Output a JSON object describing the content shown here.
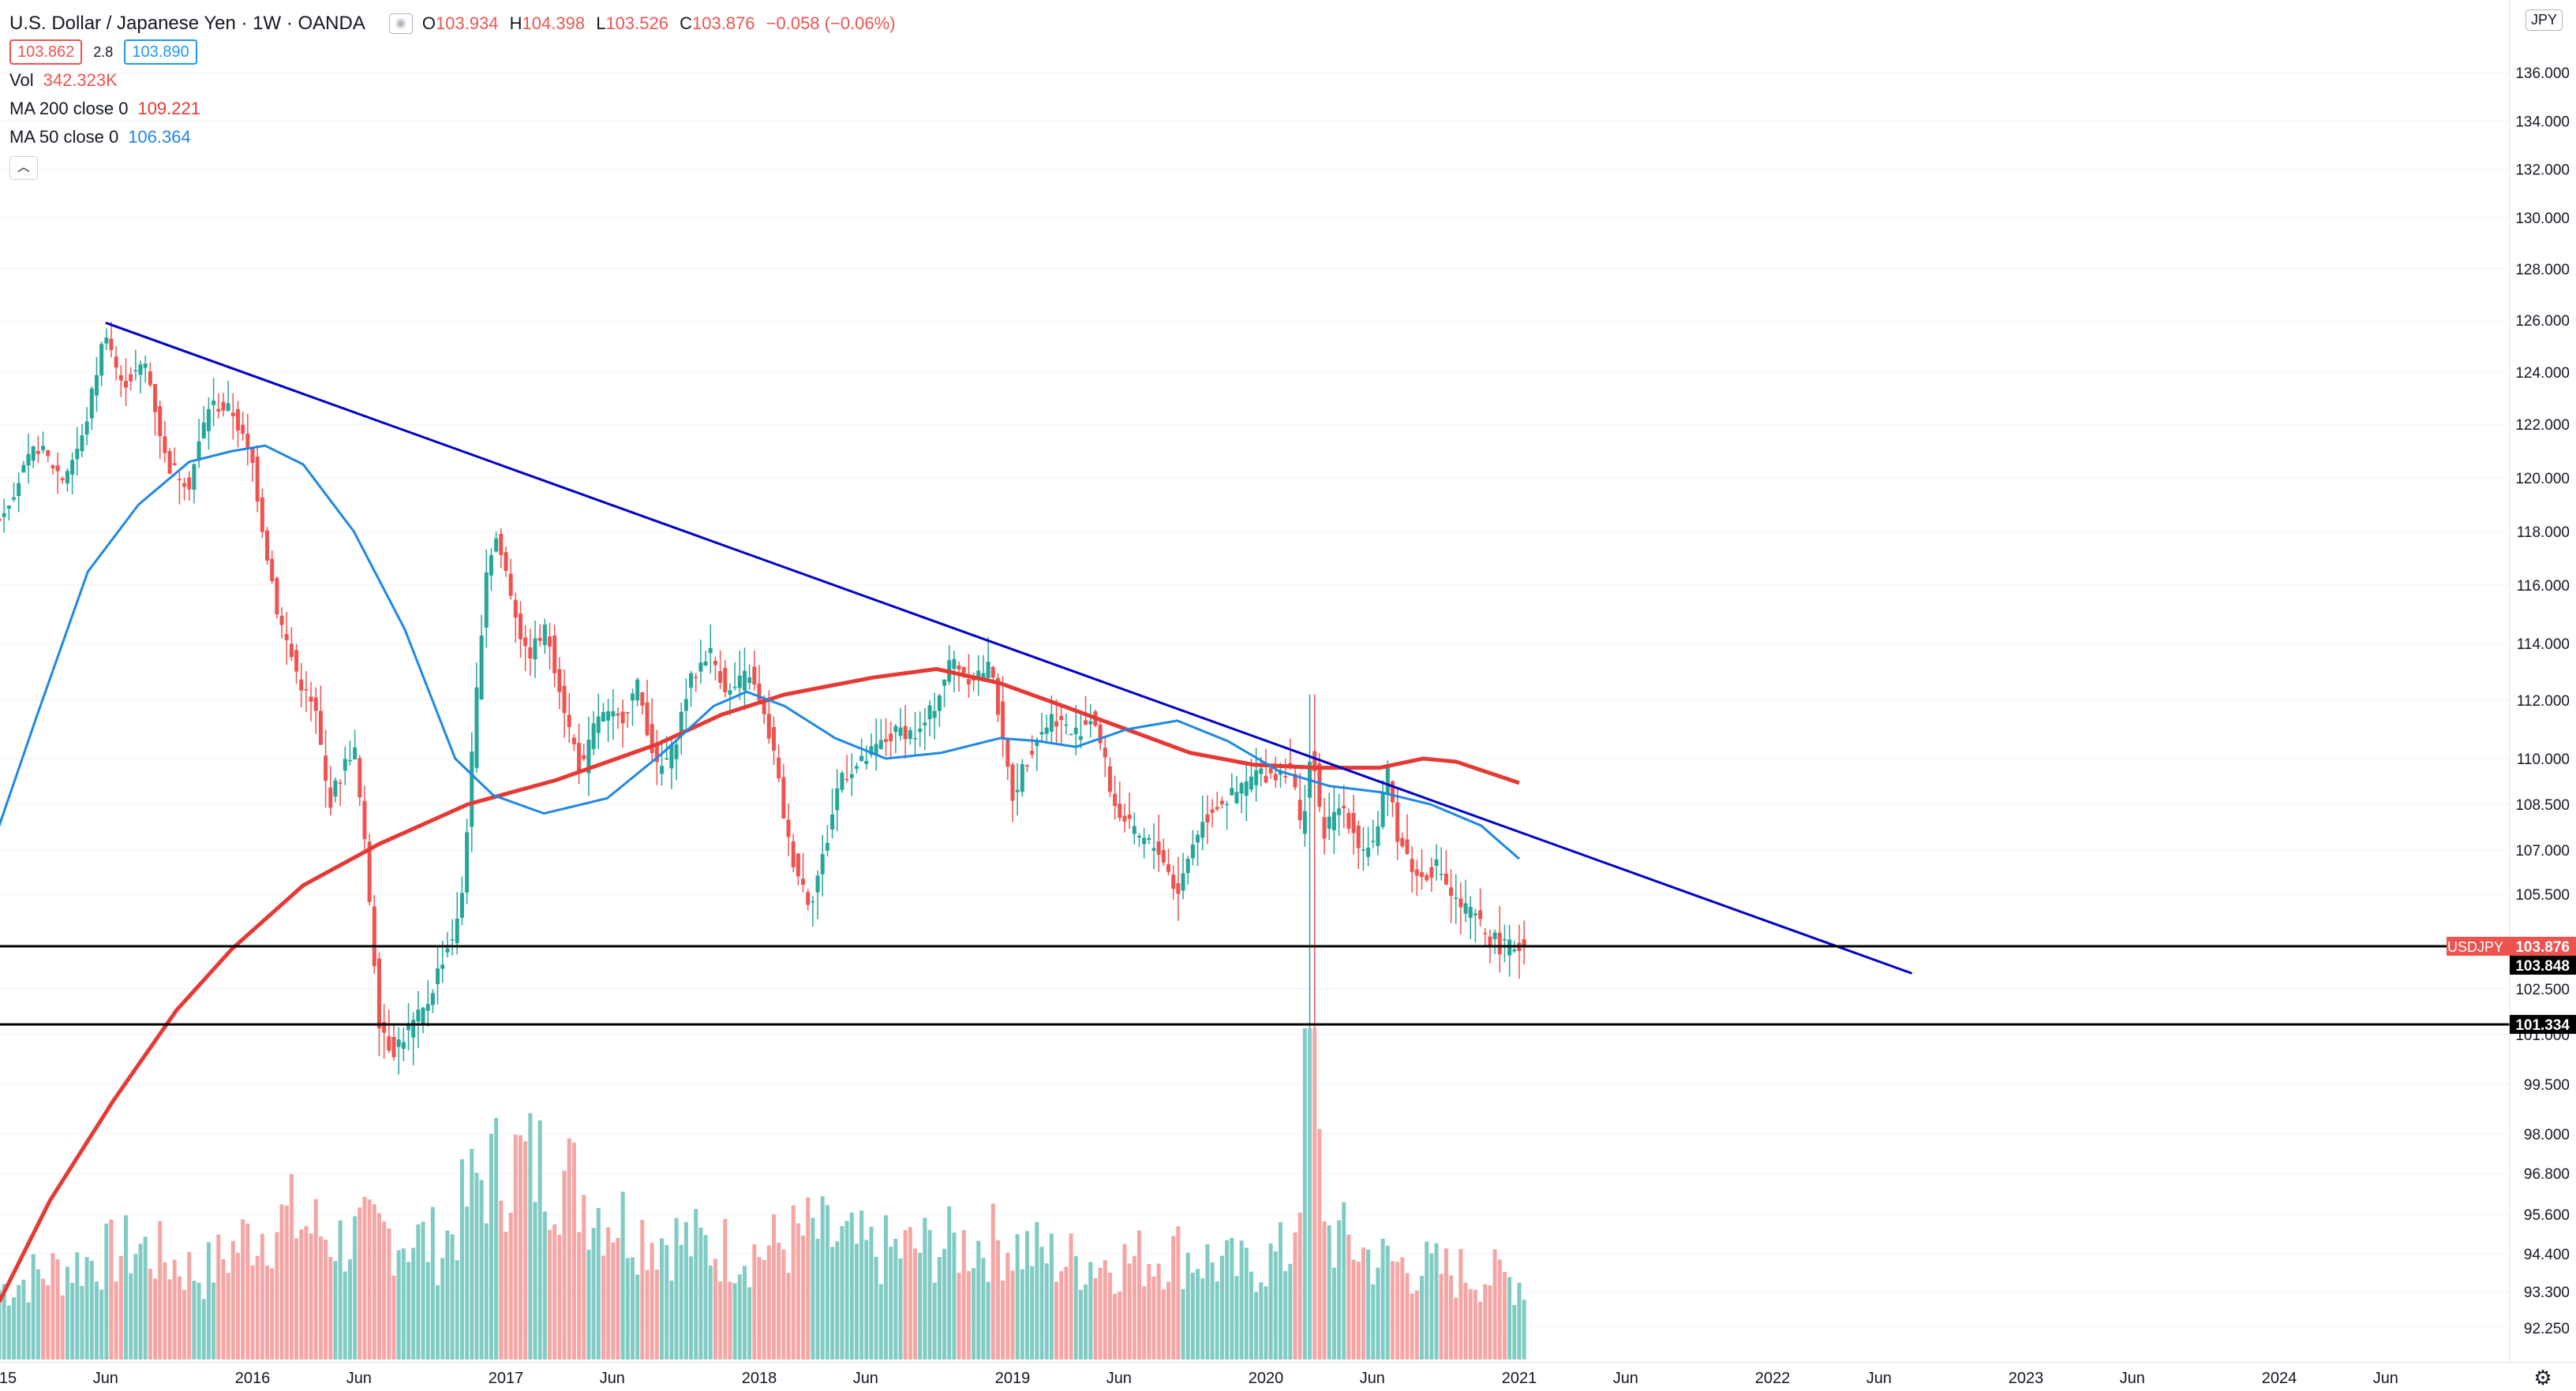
{
  "header": {
    "title": "U.S. Dollar / Japanese Yen · 1W · OANDA",
    "ohlc": [
      {
        "k": "O",
        "v": "103.934"
      },
      {
        "k": "H",
        "v": "104.398"
      },
      {
        "k": "L",
        "v": "103.526"
      },
      {
        "k": "C",
        "v": "103.876"
      },
      {
        "k": "",
        "v": "−0.058 (−0.06%)"
      }
    ],
    "sell_price": "103.862",
    "spread": "2.8",
    "buy_price": "103.890"
  },
  "indicators": {
    "vol_name": "Vol",
    "vol_value": "342.323K",
    "ma200_name": "MA 200 close 0",
    "ma200_value": "109.221",
    "ma50_name": "MA 50 close 0",
    "ma50_value": "106.364"
  },
  "currency": "JPY",
  "colors": {
    "up": "#26a69a",
    "down": "#ef5350",
    "ma200": "#e53935",
    "ma50": "#1e88e5",
    "trend": "#0000cc",
    "hline": "#000000"
  },
  "chart_data": {
    "type": "candlestick",
    "symbol": "USDJPY",
    "timeframe": "1W",
    "ylabel": "",
    "y_ticks": [
      "136.000",
      "134.000",
      "132.000",
      "130.000",
      "128.000",
      "126.000",
      "124.000",
      "122.000",
      "120.000",
      "118.000",
      "116.000",
      "114.000",
      "112.000",
      "110.000",
      "108.500",
      "107.000",
      "105.500",
      "102.500",
      "101.000",
      "99.500",
      "98.000",
      "96.800",
      "95.600",
      "94.400",
      "93.300",
      "92.250"
    ],
    "x_ticks": [
      "15",
      "Jun",
      "2016",
      "Jun",
      "2017",
      "Jun",
      "2018",
      "Jun",
      "2019",
      "Jun",
      "2020",
      "Jun",
      "2021",
      "Jun",
      "2022",
      "Jun",
      "2023",
      "Jun",
      "2024",
      "Jun"
    ],
    "price_path": [
      [
        2015.0,
        118.5
      ],
      [
        2015.07,
        119.8
      ],
      [
        2015.15,
        121.2
      ],
      [
        2015.25,
        120.0
      ],
      [
        2015.33,
        121.5
      ],
      [
        2015.42,
        125.7
      ],
      [
        2015.48,
        123.5
      ],
      [
        2015.58,
        124.3
      ],
      [
        2015.66,
        120.5
      ],
      [
        2015.75,
        119.8
      ],
      [
        2015.83,
        122.8
      ],
      [
        2015.92,
        122.5
      ],
      [
        2016.0,
        120.5
      ],
      [
        2016.05,
        117.5
      ],
      [
        2016.1,
        115.0
      ],
      [
        2016.18,
        112.8
      ],
      [
        2016.25,
        111.5
      ],
      [
        2016.3,
        108.5
      ],
      [
        2016.4,
        110.5
      ],
      [
        2016.45,
        106.5
      ],
      [
        2016.5,
        101.5
      ],
      [
        2016.55,
        100.5
      ],
      [
        2016.6,
        101.0
      ],
      [
        2016.68,
        101.8
      ],
      [
        2016.75,
        103.5
      ],
      [
        2016.82,
        104.8
      ],
      [
        2016.87,
        110.5
      ],
      [
        2016.92,
        116.5
      ],
      [
        2016.96,
        117.8
      ],
      [
        2017.0,
        116.5
      ],
      [
        2017.08,
        113.5
      ],
      [
        2017.16,
        114.5
      ],
      [
        2017.25,
        111.0
      ],
      [
        2017.3,
        109.5
      ],
      [
        2017.36,
        111.5
      ],
      [
        2017.45,
        111.3
      ],
      [
        2017.52,
        112.5
      ],
      [
        2017.6,
        109.5
      ],
      [
        2017.66,
        110.3
      ],
      [
        2017.72,
        112.5
      ],
      [
        2017.8,
        113.8
      ],
      [
        2017.88,
        112.2
      ],
      [
        2017.96,
        113.0
      ],
      [
        2018.05,
        110.5
      ],
      [
        2018.12,
        107.0
      ],
      [
        2018.2,
        105.2
      ],
      [
        2018.26,
        107.0
      ],
      [
        2018.32,
        109.5
      ],
      [
        2018.4,
        109.8
      ],
      [
        2018.48,
        110.5
      ],
      [
        2018.56,
        111.0
      ],
      [
        2018.63,
        110.8
      ],
      [
        2018.7,
        112.0
      ],
      [
        2018.76,
        113.5
      ],
      [
        2018.83,
        112.8
      ],
      [
        2018.92,
        113.2
      ],
      [
        2018.96,
        110.5
      ],
      [
        2019.0,
        108.8
      ],
      [
        2019.08,
        110.5
      ],
      [
        2019.16,
        111.5
      ],
      [
        2019.24,
        110.8
      ],
      [
        2019.32,
        111.5
      ],
      [
        2019.4,
        108.5
      ],
      [
        2019.48,
        107.5
      ],
      [
        2019.58,
        107.0
      ],
      [
        2019.65,
        105.5
      ],
      [
        2019.72,
        107.5
      ],
      [
        2019.8,
        108.5
      ],
      [
        2019.88,
        108.8
      ],
      [
        2019.96,
        109.5
      ],
      [
        2020.04,
        109.5
      ],
      [
        2020.1,
        109.8
      ],
      [
        2020.14,
        107.5
      ],
      [
        2020.18,
        110.5
      ],
      [
        2020.22,
        107.5
      ],
      [
        2020.3,
        108.5
      ],
      [
        2020.38,
        107.0
      ],
      [
        2020.44,
        107.5
      ],
      [
        2020.48,
        109.5
      ],
      [
        2020.52,
        107.5
      ],
      [
        2020.6,
        106.0
      ],
      [
        2020.68,
        106.5
      ],
      [
        2020.74,
        105.3
      ],
      [
        2020.82,
        104.8
      ],
      [
        2020.88,
        104.2
      ],
      [
        2020.94,
        103.8
      ],
      [
        2021.0,
        103.9
      ]
    ],
    "ma200_path": [
      [
        2015.0,
        93.0
      ],
      [
        2015.2,
        96.0
      ],
      [
        2015.45,
        99.0
      ],
      [
        2015.7,
        101.8
      ],
      [
        2015.92,
        103.8
      ],
      [
        2016.2,
        105.8
      ],
      [
        2016.5,
        107.2
      ],
      [
        2016.85,
        108.5
      ],
      [
        2017.2,
        109.3
      ],
      [
        2017.6,
        110.5
      ],
      [
        2017.85,
        111.5
      ],
      [
        2018.1,
        112.2
      ],
      [
        2018.45,
        112.8
      ],
      [
        2018.7,
        113.1
      ],
      [
        2018.95,
        112.6
      ],
      [
        2019.2,
        111.8
      ],
      [
        2019.45,
        111.0
      ],
      [
        2019.7,
        110.2
      ],
      [
        2019.95,
        109.8
      ],
      [
        2020.2,
        109.7
      ],
      [
        2020.45,
        109.7
      ],
      [
        2020.62,
        110.0
      ],
      [
        2020.75,
        109.9
      ],
      [
        2021.0,
        109.2
      ]
    ],
    "ma50_path": [
      [
        2015.0,
        107.8
      ],
      [
        2015.15,
        111.5
      ],
      [
        2015.35,
        116.5
      ],
      [
        2015.55,
        119.0
      ],
      [
        2015.75,
        120.6
      ],
      [
        2015.92,
        121.0
      ],
      [
        2016.05,
        121.2
      ],
      [
        2016.2,
        120.5
      ],
      [
        2016.4,
        118.0
      ],
      [
        2016.6,
        114.5
      ],
      [
        2016.8,
        110.0
      ],
      [
        2016.95,
        108.8
      ],
      [
        2017.15,
        108.2
      ],
      [
        2017.4,
        108.7
      ],
      [
        2017.62,
        110.2
      ],
      [
        2017.82,
        111.8
      ],
      [
        2017.95,
        112.3
      ],
      [
        2018.1,
        111.8
      ],
      [
        2018.3,
        110.7
      ],
      [
        2018.5,
        110.0
      ],
      [
        2018.72,
        110.2
      ],
      [
        2018.95,
        110.7
      ],
      [
        2019.1,
        110.6
      ],
      [
        2019.25,
        110.4
      ],
      [
        2019.45,
        111.0
      ],
      [
        2019.65,
        111.3
      ],
      [
        2019.85,
        110.6
      ],
      [
        2020.05,
        109.6
      ],
      [
        2020.25,
        109.1
      ],
      [
        2020.45,
        108.9
      ],
      [
        2020.65,
        108.5
      ],
      [
        2020.85,
        107.8
      ],
      [
        2021.0,
        106.7
      ]
    ],
    "trendline": [
      [
        2015.42,
        125.9
      ],
      [
        2022.55,
        103.0
      ]
    ],
    "horizontal_levels": [
      103.876,
      101.334
    ],
    "price_labels": [
      {
        "label": "USDJPY",
        "value": "103.876",
        "color": "#ef5350"
      },
      {
        "label": "",
        "value": "103.848",
        "color": "#000000"
      },
      {
        "label": "",
        "value": "101.334",
        "color": "#000000"
      }
    ],
    "volume_profile": [
      [
        2015.0,
        0.25
      ],
      [
        2015.15,
        0.3
      ],
      [
        2015.35,
        0.35
      ],
      [
        2015.55,
        0.4
      ],
      [
        2015.8,
        0.3
      ],
      [
        2016.0,
        0.45
      ],
      [
        2016.15,
        0.5
      ],
      [
        2016.35,
        0.42
      ],
      [
        2016.55,
        0.45
      ],
      [
        2016.75,
        0.4
      ],
      [
        2016.9,
        0.65
      ],
      [
        2017.05,
        0.7
      ],
      [
        2017.2,
        0.68
      ],
      [
        2017.35,
        0.55
      ],
      [
        2017.55,
        0.45
      ],
      [
        2017.8,
        0.4
      ],
      [
        2018.0,
        0.38
      ],
      [
        2018.2,
        0.45
      ],
      [
        2018.45,
        0.38
      ],
      [
        2018.7,
        0.4
      ],
      [
        2018.95,
        0.42
      ],
      [
        2019.2,
        0.35
      ],
      [
        2019.45,
        0.35
      ],
      [
        2019.65,
        0.38
      ],
      [
        2019.9,
        0.32
      ],
      [
        2020.1,
        0.38
      ],
      [
        2020.17,
        1.0
      ],
      [
        2020.25,
        0.45
      ],
      [
        2020.45,
        0.35
      ],
      [
        2020.65,
        0.32
      ],
      [
        2020.85,
        0.3
      ],
      [
        2021.0,
        0.28
      ]
    ]
  }
}
